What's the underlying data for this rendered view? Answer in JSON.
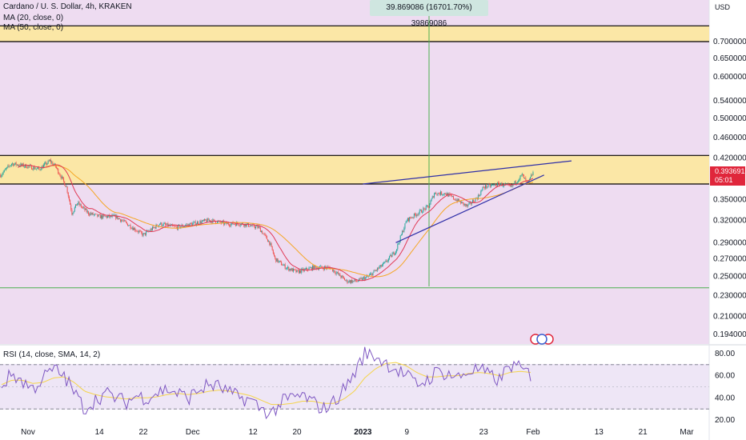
{
  "header": {
    "symbol_title": "Cardano / U. S. Dollar, 4h, KRAKEN",
    "ma20_label": "MA (20, close, 0)",
    "ma50_label": "MA (50, close, 0)",
    "currency": "USD",
    "crosshair_readout": "39.869086 (16701.70%) 39869086",
    "rsi_label": "RSI (14, close, SMA, 14, 2)"
  },
  "last_price": {
    "value": "0.393691",
    "countdown": "05:01"
  },
  "colors": {
    "background_band": "#eedcf1",
    "zone_fill": "#fbe7a6",
    "candle_up": "#26a69a",
    "candle_down": "#ef5350",
    "ma20": "#e03a56",
    "ma50": "#f5a623",
    "trendline": "#2f2fa8",
    "rsi": "#7e57c2",
    "rsi_sma": "#f5d44a",
    "crosshair": "#4caf50",
    "price_tag": "#e0263b"
  },
  "chart_data": [
    {
      "type": "line",
      "kind": "candlestick-price",
      "y_scale": "log",
      "ylim": [
        0.185,
        0.8
      ],
      "price_tick_labels": [
        "0.700000",
        "0.650000",
        "0.600000",
        "0.540000",
        "0.500000",
        "0.460000",
        "0.420000",
        "0.350000",
        "0.320000",
        "0.290000",
        "0.270000",
        "0.250000",
        "0.230000",
        "0.210000",
        "0.194000"
      ],
      "price_tick_values": [
        0.7,
        0.65,
        0.6,
        0.54,
        0.5,
        0.46,
        0.42,
        0.35,
        0.32,
        0.29,
        0.27,
        0.25,
        0.23,
        0.21,
        0.194
      ],
      "x_tick_labels": [
        "Nov",
        "14",
        "22",
        "Dec",
        "12",
        "20",
        "2023",
        "9",
        "23",
        "Feb",
        "13",
        "21",
        "Mar"
      ],
      "x_tick_dates": [
        "2022-11-01",
        "2022-11-14",
        "2022-11-22",
        "2022-12-01",
        "2022-12-12",
        "2022-12-20",
        "2023-01-01",
        "2023-01-09",
        "2023-01-23",
        "2023-02-01",
        "2023-02-13",
        "2023-02-21",
        "2023-03-01"
      ],
      "close_path": [
        {
          "date": "2022-10-27",
          "close": 0.39
        },
        {
          "date": "2022-10-29",
          "close": 0.41
        },
        {
          "date": "2022-11-01",
          "close": 0.405
        },
        {
          "date": "2022-11-03",
          "close": 0.4
        },
        {
          "date": "2022-11-05",
          "close": 0.415
        },
        {
          "date": "2022-11-06",
          "close": 0.405
        },
        {
          "date": "2022-11-08",
          "close": 0.37
        },
        {
          "date": "2022-11-09",
          "close": 0.33
        },
        {
          "date": "2022-11-10",
          "close": 0.345
        },
        {
          "date": "2022-11-12",
          "close": 0.33
        },
        {
          "date": "2022-11-14",
          "close": 0.325
        },
        {
          "date": "2022-11-17",
          "close": 0.325
        },
        {
          "date": "2022-11-20",
          "close": 0.31
        },
        {
          "date": "2022-11-22",
          "close": 0.3
        },
        {
          "date": "2022-11-25",
          "close": 0.315
        },
        {
          "date": "2022-11-28",
          "close": 0.31
        },
        {
          "date": "2022-12-01",
          "close": 0.315
        },
        {
          "date": "2022-12-04",
          "close": 0.32
        },
        {
          "date": "2022-12-07",
          "close": 0.315
        },
        {
          "date": "2022-12-10",
          "close": 0.315
        },
        {
          "date": "2022-12-13",
          "close": 0.31
        },
        {
          "date": "2022-12-15",
          "close": 0.29
        },
        {
          "date": "2022-12-16",
          "close": 0.27
        },
        {
          "date": "2022-12-18",
          "close": 0.26
        },
        {
          "date": "2022-12-20",
          "close": 0.255
        },
        {
          "date": "2022-12-23",
          "close": 0.26
        },
        {
          "date": "2022-12-26",
          "close": 0.26
        },
        {
          "date": "2022-12-29",
          "close": 0.245
        },
        {
          "date": "2022-12-31",
          "close": 0.245
        },
        {
          "date": "2023-01-02",
          "close": 0.25
        },
        {
          "date": "2023-01-05",
          "close": 0.265
        },
        {
          "date": "2023-01-07",
          "close": 0.28
        },
        {
          "date": "2023-01-08",
          "close": 0.3
        },
        {
          "date": "2023-01-09",
          "close": 0.32
        },
        {
          "date": "2023-01-11",
          "close": 0.33
        },
        {
          "date": "2023-01-13",
          "close": 0.34
        },
        {
          "date": "2023-01-14",
          "close": 0.36
        },
        {
          "date": "2023-01-16",
          "close": 0.36
        },
        {
          "date": "2023-01-18",
          "close": 0.35
        },
        {
          "date": "2023-01-20",
          "close": 0.34
        },
        {
          "date": "2023-01-22",
          "close": 0.355
        },
        {
          "date": "2023-01-23",
          "close": 0.37
        },
        {
          "date": "2023-01-26",
          "close": 0.375
        },
        {
          "date": "2023-01-28",
          "close": 0.37
        },
        {
          "date": "2023-01-30",
          "close": 0.39
        },
        {
          "date": "2023-01-31",
          "close": 0.375
        },
        {
          "date": "2023-02-01",
          "close": 0.394
        }
      ],
      "zones": [
        {
          "from": 0.7,
          "to": 0.75
        },
        {
          "from": 0.375,
          "to": 0.425
        }
      ],
      "horizontal_lines": [
        0.238
      ],
      "trendlines": [
        {
          "start": {
            "date": "2023-01-01",
            "price": 0.375
          },
          "end": {
            "date": "2023-02-08",
            "price": 0.415
          }
        },
        {
          "start": {
            "date": "2023-01-07",
            "price": 0.29
          },
          "end": {
            "date": "2023-02-03",
            "price": 0.39
          }
        }
      ]
    },
    {
      "type": "line",
      "kind": "rsi",
      "ylim": [
        15,
        90
      ],
      "tick_labels": [
        "80.00",
        "60.00",
        "40.00",
        "20.00"
      ],
      "tick_values": [
        80,
        60,
        40,
        20
      ],
      "band_levels": [
        70,
        30
      ],
      "mid_level": 50,
      "series": [
        {
          "values": [
            50,
            62,
            55,
            48,
            58,
            66,
            60,
            45,
            30,
            38,
            44,
            40,
            36,
            42,
            40,
            45,
            48,
            44,
            40,
            47,
            52,
            50,
            44,
            40,
            38,
            30,
            26,
            36,
            40,
            42,
            36,
            30,
            36,
            48,
            62,
            80,
            78,
            72,
            66,
            60,
            52,
            56,
            64,
            62,
            58,
            64,
            66,
            60,
            56,
            70,
            66,
            61
          ]
        },
        {
          "values": [
            52,
            56,
            56,
            53,
            54,
            58,
            59,
            54,
            46,
            43,
            41,
            40,
            39,
            40,
            40,
            41,
            43,
            44,
            43,
            44,
            46,
            47,
            46,
            44,
            42,
            38,
            34,
            34,
            35,
            37,
            37,
            35,
            35,
            39,
            46,
            58,
            66,
            71,
            72,
            69,
            63,
            59,
            59,
            60,
            60,
            62,
            63,
            62,
            60,
            63,
            64,
            63
          ]
        }
      ]
    }
  ]
}
